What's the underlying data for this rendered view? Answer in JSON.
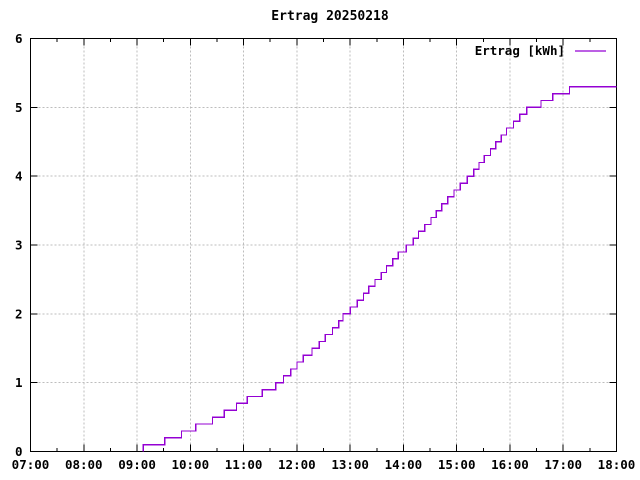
{
  "window": {
    "background": "#ffffff"
  },
  "chart_data": {
    "type": "line",
    "line_style": "steps",
    "title": "Ertrag 20250218",
    "legend": {
      "label": "Ertrag [kWh]",
      "position": "top-right-inside"
    },
    "colors": {
      "series": "#9400d3",
      "grid": "#bdbdbd",
      "axis": "#000000",
      "background": "#ffffff",
      "text": "#000000"
    },
    "x_axis": {
      "label": "",
      "range_hours": [
        7,
        18
      ],
      "tick_labels": [
        "07:00",
        "08:00",
        "09:00",
        "10:00",
        "11:00",
        "12:00",
        "13:00",
        "14:00",
        "15:00",
        "16:00",
        "17:00",
        "18:00"
      ],
      "minor_ticks_per_hour": 1,
      "grid": true
    },
    "y_axis": {
      "label": "",
      "range": [
        0,
        6
      ],
      "ticks": [
        0,
        1,
        2,
        3,
        4,
        5,
        6
      ],
      "grid": true
    },
    "series": [
      {
        "name": "Ertrag [kWh]",
        "unit": "kWh",
        "color": "#9400d3",
        "end_time": "18:00",
        "end_value": 5.3,
        "points": [
          [
            "09:07",
            0.1
          ],
          [
            "09:31",
            0.2
          ],
          [
            "09:50",
            0.3
          ],
          [
            "10:06",
            0.4
          ],
          [
            "10:25",
            0.5
          ],
          [
            "10:38",
            0.6
          ],
          [
            "10:52",
            0.7
          ],
          [
            "11:04",
            0.8
          ],
          [
            "11:21",
            0.9
          ],
          [
            "11:36",
            1.0
          ],
          [
            "11:45",
            1.1
          ],
          [
            "11:53",
            1.2
          ],
          [
            "12:00",
            1.3
          ],
          [
            "12:07",
            1.4
          ],
          [
            "12:17",
            1.5
          ],
          [
            "12:25",
            1.6
          ],
          [
            "12:32",
            1.7
          ],
          [
            "12:40",
            1.8
          ],
          [
            "12:47",
            1.9
          ],
          [
            "12:52",
            2.0
          ],
          [
            "13:00",
            2.1
          ],
          [
            "13:08",
            2.2
          ],
          [
            "13:15",
            2.3
          ],
          [
            "13:21",
            2.4
          ],
          [
            "13:28",
            2.5
          ],
          [
            "13:35",
            2.6
          ],
          [
            "13:41",
            2.7
          ],
          [
            "13:48",
            2.8
          ],
          [
            "13:54",
            2.9
          ],
          [
            "14:03",
            3.0
          ],
          [
            "14:11",
            3.1
          ],
          [
            "14:17",
            3.2
          ],
          [
            "14:24",
            3.3
          ],
          [
            "14:31",
            3.4
          ],
          [
            "14:37",
            3.5
          ],
          [
            "14:43",
            3.6
          ],
          [
            "14:50",
            3.7
          ],
          [
            "14:57",
            3.8
          ],
          [
            "15:04",
            3.9
          ],
          [
            "15:12",
            4.0
          ],
          [
            "15:19",
            4.1
          ],
          [
            "15:25",
            4.2
          ],
          [
            "15:31",
            4.3
          ],
          [
            "15:38",
            4.4
          ],
          [
            "15:44",
            4.5
          ],
          [
            "15:50",
            4.6
          ],
          [
            "15:56",
            4.7
          ],
          [
            "16:04",
            4.8
          ],
          [
            "16:11",
            4.9
          ],
          [
            "16:19",
            5.0
          ],
          [
            "16:35",
            5.1
          ],
          [
            "16:48",
            5.2
          ],
          [
            "17:07",
            5.3
          ]
        ]
      }
    ]
  }
}
